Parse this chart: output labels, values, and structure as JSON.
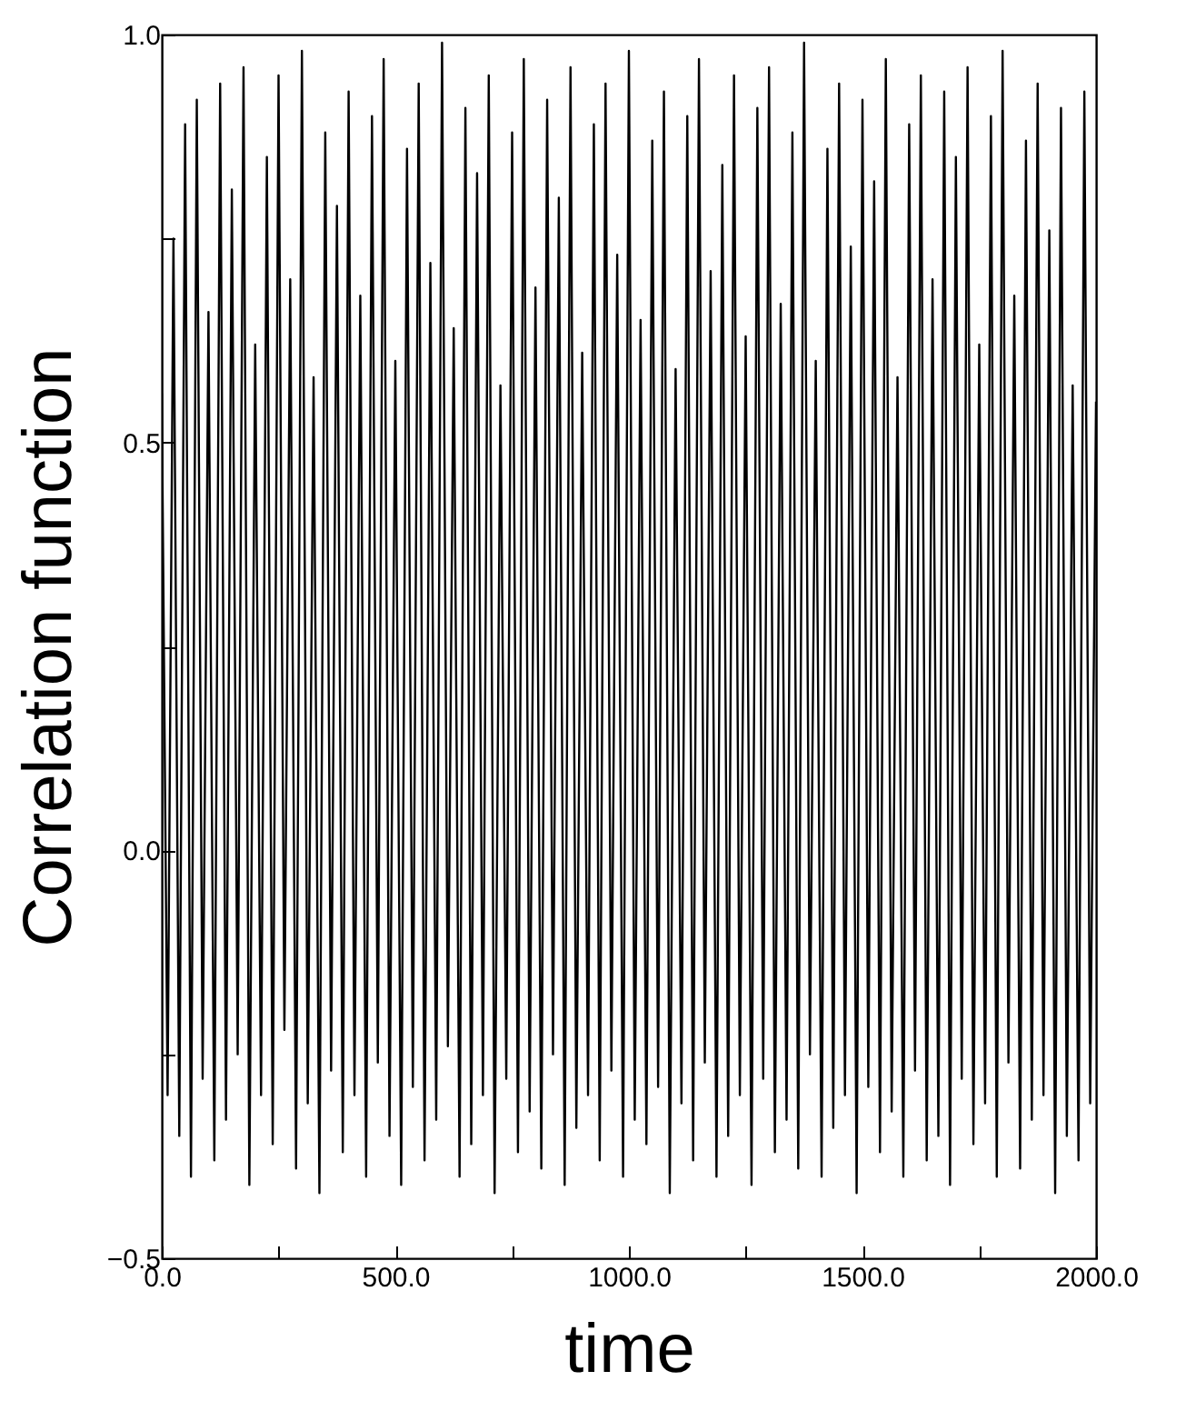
{
  "chart_data": {
    "type": "line",
    "xlabel": "time",
    "ylabel": "Correlation function",
    "xlim": [
      0,
      2000
    ],
    "ylim": [
      -0.5,
      1.0
    ],
    "xticks": [
      {
        "value": 0,
        "label": "0.0"
      },
      {
        "value": 250,
        "label": null
      },
      {
        "value": 500,
        "label": "500.0"
      },
      {
        "value": 750,
        "label": null
      },
      {
        "value": 1000,
        "label": "1000.0"
      },
      {
        "value": 1250,
        "label": null
      },
      {
        "value": 1500,
        "label": "1500.0"
      },
      {
        "value": 1750,
        "label": null
      },
      {
        "value": 2000,
        "label": "2000.0"
      }
    ],
    "yticks": [
      {
        "value": -0.5,
        "label": "−0.5"
      },
      {
        "value": -0.25,
        "label": null
      },
      {
        "value": 0,
        "label": "0.0"
      },
      {
        "value": 0.25,
        "label": null
      },
      {
        "value": 0.5,
        "label": "0.5"
      },
      {
        "value": 0.75,
        "label": null
      },
      {
        "value": 1.0,
        "label": "1.0"
      }
    ],
    "grid": false,
    "marker": "none",
    "line_style": "solid",
    "x": [
      0,
      12.5,
      25,
      37.5,
      50,
      62.5,
      75,
      87.5,
      100,
      112.5,
      125,
      137.5,
      150,
      162.5,
      175,
      187.5,
      200,
      212.5,
      225,
      237.5,
      250,
      262.5,
      275,
      287.5,
      300,
      312.5,
      325,
      337.5,
      350,
      362.5,
      375,
      387.5,
      400,
      412.5,
      425,
      437.5,
      450,
      462.5,
      475,
      487.5,
      500,
      512.5,
      525,
      537.5,
      550,
      562.5,
      575,
      587.5,
      600,
      612.5,
      625,
      637.5,
      650,
      662.5,
      675,
      687.5,
      700,
      712.5,
      725,
      737.5,
      750,
      762.5,
      775,
      787.5,
      800,
      812.5,
      825,
      837.5,
      850,
      862.5,
      875,
      887.5,
      900,
      912.5,
      925,
      937.5,
      950,
      962.5,
      975,
      987.5,
      1000,
      1012.5,
      1025,
      1037.5,
      1050,
      1062.5,
      1075,
      1087.5,
      1100,
      1112.5,
      1125,
      1137.5,
      1150,
      1162.5,
      1175,
      1187.5,
      1200,
      1212.5,
      1225,
      1237.5,
      1250,
      1262.5,
      1275,
      1287.5,
      1300,
      1312.5,
      1325,
      1337.5,
      1350,
      1362.5,
      1375,
      1387.5,
      1400,
      1412.5,
      1425,
      1437.5,
      1450,
      1462.5,
      1475,
      1487.5,
      1500,
      1512.5,
      1525,
      1537.5,
      1550,
      1562.5,
      1575,
      1587.5,
      1600,
      1612.5,
      1625,
      1637.5,
      1650,
      1662.5,
      1675,
      1687.5,
      1700,
      1712.5,
      1725,
      1737.5,
      1750,
      1762.5,
      1775,
      1787.5,
      1800,
      1812.5,
      1825,
      1837.5,
      1850,
      1862.5,
      1875,
      1887.5,
      1900,
      1912.5,
      1925,
      1937.5,
      1950,
      1962.5,
      1975,
      1987.5,
      2000
    ],
    "series": [
      {
        "color": "#000000",
        "values": [
          0.56,
          -0.3,
          0.75,
          -0.35,
          0.89,
          -0.4,
          0.92,
          -0.28,
          0.66,
          -0.38,
          0.94,
          -0.33,
          0.81,
          -0.25,
          0.96,
          -0.41,
          0.62,
          -0.3,
          0.85,
          -0.36,
          0.95,
          -0.22,
          0.7,
          -0.39,
          0.98,
          -0.31,
          0.58,
          -0.42,
          0.88,
          -0.27,
          0.79,
          -0.37,
          0.93,
          -0.3,
          0.68,
          -0.4,
          0.9,
          -0.26,
          0.97,
          -0.35,
          0.6,
          -0.41,
          0.86,
          -0.29,
          0.94,
          -0.38,
          0.72,
          -0.33,
          0.99,
          -0.24,
          0.64,
          -0.4,
          0.91,
          -0.36,
          0.83,
          -0.3,
          0.95,
          -0.42,
          0.57,
          -0.28,
          0.88,
          -0.37,
          0.97,
          -0.32,
          0.69,
          -0.39,
          0.92,
          -0.25,
          0.8,
          -0.41,
          0.96,
          -0.34,
          0.61,
          -0.3,
          0.89,
          -0.38,
          0.94,
          -0.27,
          0.73,
          -0.4,
          0.98,
          -0.33,
          0.65,
          -0.36,
          0.87,
          -0.29,
          0.93,
          -0.42,
          0.59,
          -0.31,
          0.9,
          -0.38,
          0.97,
          -0.26,
          0.71,
          -0.4,
          0.84,
          -0.35,
          0.95,
          -0.3,
          0.63,
          -0.41,
          0.91,
          -0.28,
          0.96,
          -0.37,
          0.67,
          -0.33,
          0.88,
          -0.39,
          0.99,
          -0.25,
          0.6,
          -0.4,
          0.86,
          -0.34,
          0.94,
          -0.3,
          0.74,
          -0.42,
          0.92,
          -0.29,
          0.82,
          -0.37,
          0.97,
          -0.32,
          0.58,
          -0.4,
          0.89,
          -0.27,
          0.95,
          -0.38,
          0.7,
          -0.35,
          0.93,
          -0.41,
          0.85,
          -0.28,
          0.96,
          -0.36,
          0.62,
          -0.31,
          0.9,
          -0.4,
          0.98,
          -0.26,
          0.68,
          -0.39,
          0.87,
          -0.33,
          0.94,
          -0.3,
          0.76,
          -0.42,
          0.91,
          -0.35,
          0.57,
          -0.38,
          0.93,
          -0.31,
          0.55
        ]
      }
    ]
  }
}
